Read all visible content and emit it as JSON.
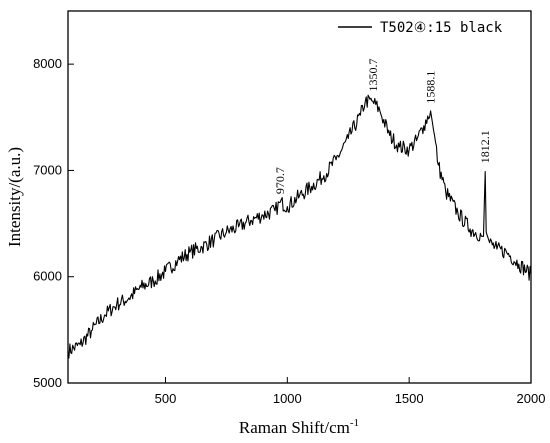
{
  "chart_data": {
    "type": "line",
    "title": "",
    "xlabel": "Raman Shift/cm",
    "xlabel_sup": "-1",
    "ylabel": "Intensity/(a.u.)",
    "xlim": [
      100,
      2000
    ],
    "ylim": [
      5000,
      8500
    ],
    "xticks": [
      500,
      1000,
      1500,
      2000
    ],
    "xtick_labels": [
      "500",
      "1000",
      "1500",
      "2000"
    ],
    "yticks": [
      5000,
      6000,
      7000,
      8000
    ],
    "ytick_labels": [
      "5000",
      "6000",
      "7000",
      "8000"
    ],
    "grid": false,
    "legend_position": "top-right",
    "series": [
      {
        "name": "T502④:15 black",
        "color": "#000000",
        "x": [
          100,
          150,
          200,
          250,
          300,
          350,
          400,
          450,
          500,
          550,
          600,
          650,
          700,
          750,
          800,
          850,
          900,
          950,
          970.7,
          1000,
          1050,
          1100,
          1150,
          1200,
          1250,
          1300,
          1320,
          1350.7,
          1380,
          1420,
          1460,
          1500,
          1530,
          1560,
          1588.1,
          1600,
          1620,
          1650,
          1700,
          1750,
          1800,
          1805,
          1812.1,
          1816,
          1830,
          1860,
          1900,
          1950,
          2000
        ],
        "y": [
          5300,
          5360,
          5500,
          5640,
          5740,
          5800,
          5900,
          5960,
          6050,
          6150,
          6230,
          6280,
          6350,
          6420,
          6470,
          6530,
          6580,
          6620,
          6700,
          6660,
          6760,
          6850,
          6950,
          7100,
          7300,
          7520,
          7650,
          7650,
          7560,
          7330,
          7220,
          7200,
          7280,
          7420,
          7560,
          7380,
          7050,
          6800,
          6600,
          6450,
          6380,
          6380,
          6990,
          6420,
          6320,
          6260,
          6230,
          6120,
          6020
        ]
      }
    ],
    "annotations": [
      {
        "label": "970.7",
        "x": 970.7,
        "y": 6740
      },
      {
        "label": "1350.7",
        "x": 1350.7,
        "y": 7705
      },
      {
        "label": "1588.1",
        "x": 1588.1,
        "y": 7590
      },
      {
        "label": "1812.1",
        "x": 1812.1,
        "y": 7030
      }
    ]
  }
}
